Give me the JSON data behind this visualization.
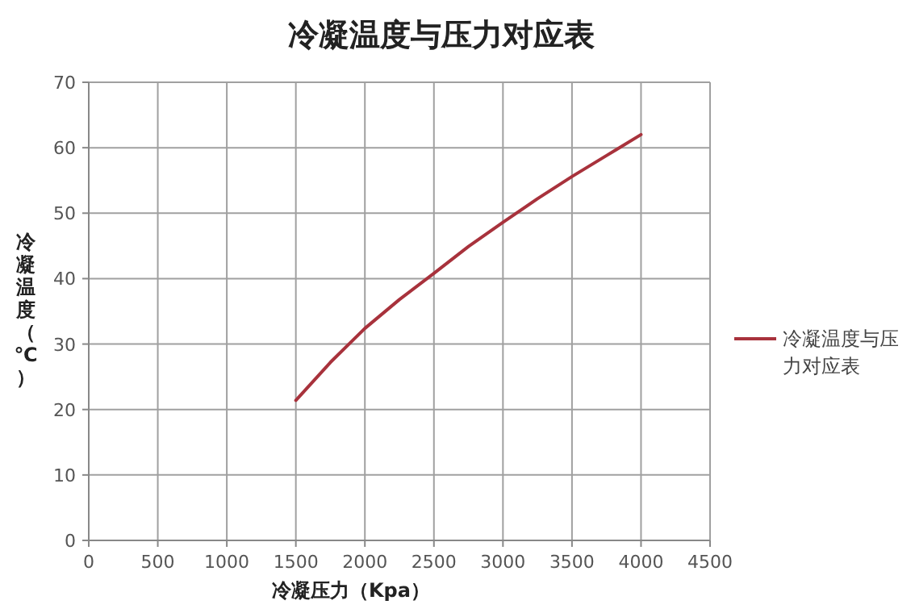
{
  "chart_data": {
    "type": "line",
    "title": "冷凝温度与压力对应表",
    "xlabel": "冷凝压力（Kpa）",
    "ylabel": "冷凝温度（℃）",
    "x": [
      1500,
      1750,
      2000,
      2250,
      2500,
      2750,
      3000,
      3250,
      3500,
      3750,
      4000
    ],
    "series": [
      {
        "name": "冷凝温度与压力对应表",
        "color": "#a8323c",
        "values": [
          21.4,
          27.2,
          32.4,
          36.8,
          40.8,
          44.9,
          48.6,
          52.2,
          55.6,
          58.8,
          62
        ]
      }
    ],
    "xlim": [
      0,
      4500
    ],
    "ylim": [
      0,
      70
    ],
    "xticks": [
      0,
      500,
      1000,
      1500,
      2000,
      2500,
      3000,
      3500,
      4000,
      4500
    ],
    "yticks": [
      0,
      10,
      20,
      30,
      40,
      50,
      60,
      70
    ],
    "grid": true,
    "legend": "right",
    "marker": "none",
    "line_style": "solid"
  }
}
